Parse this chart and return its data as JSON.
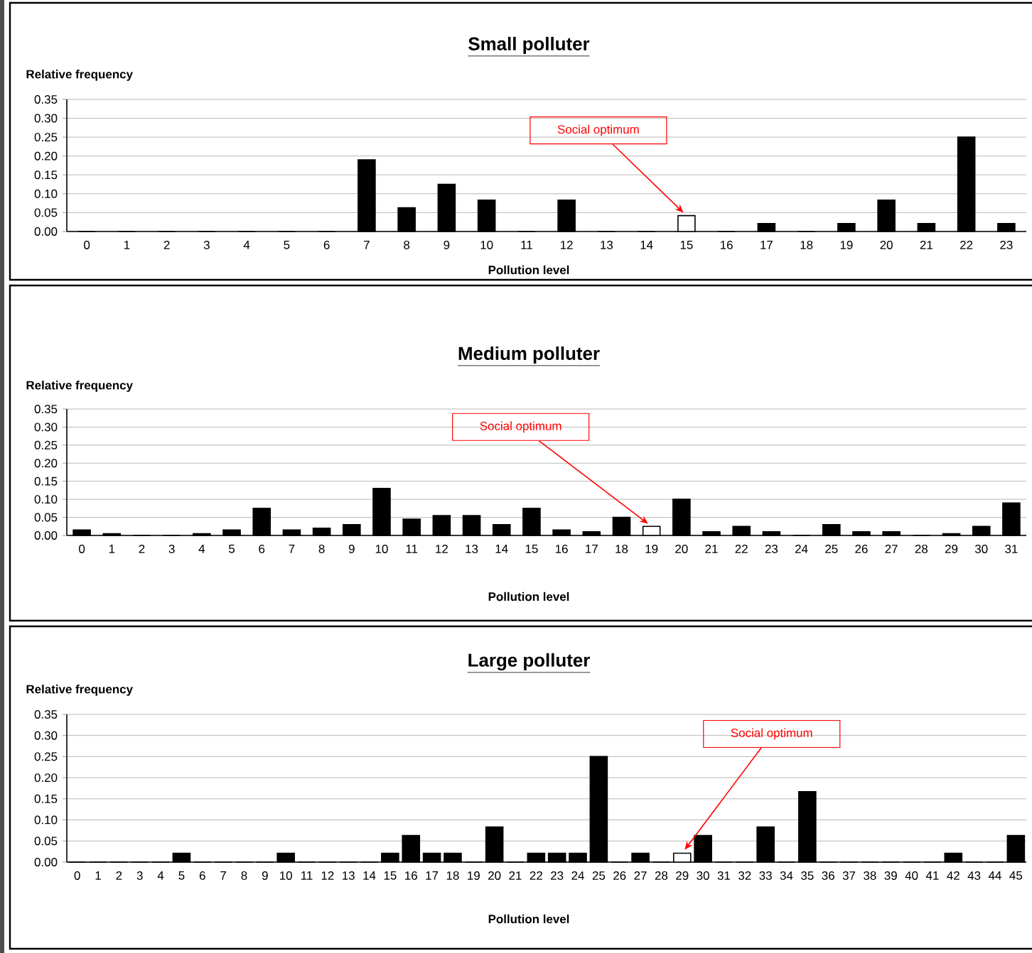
{
  "chart_data": [
    {
      "type": "bar",
      "title": "Small polluter",
      "xlabel": "Pollution level",
      "ylabel": "Relative frequency",
      "categories": [
        "0",
        "1",
        "2",
        "3",
        "4",
        "5",
        "6",
        "7",
        "8",
        "9",
        "10",
        "11",
        "12",
        "13",
        "14",
        "15",
        "16",
        "17",
        "18",
        "19",
        "20",
        "21",
        "22",
        "23"
      ],
      "values": [
        0,
        0,
        0,
        0,
        0,
        0,
        0,
        0.19,
        0.063,
        0.125,
        0.083,
        0,
        0.083,
        0,
        0,
        0.042,
        0,
        0.021,
        0,
        0.021,
        0.083,
        0.021,
        0.25,
        0.021
      ],
      "colors": [
        "#000000",
        "#000000",
        "#000000",
        "#000000",
        "#000000",
        "#000000",
        "#000000",
        "#000000",
        "#000000",
        "#000000",
        "#000000",
        "#000000",
        "#000000",
        "#000000",
        "#000000",
        "#ffffff",
        "#000000",
        "#000000",
        "#000000",
        "#000000",
        "#000000",
        "#000000",
        "#000000",
        "#000000"
      ],
      "ylim": [
        0,
        0.35
      ],
      "yticks": [
        {
          "value": 0,
          "label": "0.00"
        },
        {
          "value": 0.05,
          "label": "0.05"
        },
        {
          "value": 0.1,
          "label": "0.10"
        },
        {
          "value": 0.15,
          "label": "0.15"
        },
        {
          "value": 0.2,
          "label": "0.20"
        },
        {
          "value": 0.25,
          "label": "0.25"
        },
        {
          "value": 0.3,
          "label": "0.30"
        },
        {
          "value": 0.35,
          "label": "0.35"
        }
      ],
      "grid": "y",
      "annotations": [
        {
          "text": "Social optimum",
          "x": "15",
          "y": 0.042
        }
      ]
    },
    {
      "type": "bar",
      "title": "Medium polluter",
      "xlabel": "Pollution level",
      "ylabel": "Relative frequency",
      "categories": [
        "0",
        "1",
        "2",
        "3",
        "4",
        "5",
        "6",
        "7",
        "8",
        "9",
        "10",
        "11",
        "12",
        "13",
        "14",
        "15",
        "16",
        "17",
        "18",
        "19",
        "20",
        "21",
        "22",
        "23",
        "24",
        "25",
        "26",
        "27",
        "28",
        "29",
        "30",
        "31"
      ],
      "values": [
        0.015,
        0.005,
        0,
        0,
        0.005,
        0.015,
        0.075,
        0.015,
        0.02,
        0.03,
        0.13,
        0.045,
        0.055,
        0.055,
        0.03,
        0.075,
        0.015,
        0.01,
        0.05,
        0.025,
        0.1,
        0.01,
        0.025,
        0.01,
        0,
        0.03,
        0.01,
        0.01,
        0,
        0.005,
        0.025,
        0.09
      ],
      "colors": [
        "#000000",
        "#000000",
        "#000000",
        "#000000",
        "#000000",
        "#000000",
        "#000000",
        "#000000",
        "#000000",
        "#000000",
        "#000000",
        "#000000",
        "#000000",
        "#000000",
        "#000000",
        "#000000",
        "#000000",
        "#000000",
        "#000000",
        "#ffffff",
        "#000000",
        "#000000",
        "#000000",
        "#000000",
        "#000000",
        "#000000",
        "#000000",
        "#000000",
        "#000000",
        "#000000",
        "#000000",
        "#000000"
      ],
      "ylim": [
        0,
        0.35
      ],
      "yticks": [
        {
          "value": 0,
          "label": "0.00"
        },
        {
          "value": 0.05,
          "label": "0.05"
        },
        {
          "value": 0.1,
          "label": "0.10"
        },
        {
          "value": 0.15,
          "label": "0.15"
        },
        {
          "value": 0.2,
          "label": "0.20"
        },
        {
          "value": 0.25,
          "label": "0.25"
        },
        {
          "value": 0.3,
          "label": "0.30"
        },
        {
          "value": 0.35,
          "label": "0.35"
        }
      ],
      "grid": "y",
      "annotations": [
        {
          "text": "Social optimum",
          "x": "19",
          "y": 0.025
        }
      ]
    },
    {
      "type": "bar",
      "title": "Large polluter",
      "xlabel": "Pollution level",
      "ylabel": "Relative frequency",
      "categories": [
        "0",
        "1",
        "2",
        "3",
        "4",
        "5",
        "6",
        "7",
        "8",
        "9",
        "10",
        "11",
        "12",
        "13",
        "14",
        "15",
        "16",
        "17",
        "18",
        "19",
        "20",
        "21",
        "22",
        "23",
        "24",
        "25",
        "26",
        "27",
        "28",
        "29",
        "30",
        "31",
        "32",
        "33",
        "34",
        "35",
        "36",
        "37",
        "38",
        "39",
        "40",
        "41",
        "42",
        "43",
        "44",
        "45"
      ],
      "values": [
        0,
        0,
        0,
        0,
        0,
        0.021,
        0,
        0,
        0,
        0,
        0.021,
        0,
        0,
        0,
        0,
        0.021,
        0.063,
        0.021,
        0.021,
        0,
        0.083,
        0,
        0.021,
        0.021,
        0.021,
        0.25,
        0,
        0.021,
        0,
        0.021,
        0.063,
        0,
        0,
        0.083,
        0,
        0.167,
        0,
        0,
        0,
        0,
        0,
        0,
        0.021,
        0,
        0,
        0.063
      ],
      "colors": [
        "#000000",
        "#000000",
        "#000000",
        "#000000",
        "#000000",
        "#000000",
        "#000000",
        "#000000",
        "#000000",
        "#000000",
        "#000000",
        "#000000",
        "#000000",
        "#000000",
        "#000000",
        "#000000",
        "#000000",
        "#000000",
        "#000000",
        "#000000",
        "#000000",
        "#000000",
        "#000000",
        "#000000",
        "#000000",
        "#000000",
        "#000000",
        "#000000",
        "#000000",
        "#ffffff",
        "#000000",
        "#000000",
        "#000000",
        "#000000",
        "#000000",
        "#000000",
        "#000000",
        "#000000",
        "#000000",
        "#000000",
        "#000000",
        "#000000",
        "#000000",
        "#000000",
        "#000000",
        "#000000"
      ],
      "ylim": [
        0,
        0.35
      ],
      "yticks": [
        {
          "value": 0,
          "label": "0.00"
        },
        {
          "value": 0.05,
          "label": "0.05"
        },
        {
          "value": 0.1,
          "label": "0.10"
        },
        {
          "value": 0.15,
          "label": "0.15"
        },
        {
          "value": 0.2,
          "label": "0.20"
        },
        {
          "value": 0.25,
          "label": "0.25"
        },
        {
          "value": 0.3,
          "label": "0.30"
        },
        {
          "value": 0.35,
          "label": "0.35"
        }
      ],
      "grid": "y",
      "annotations": [
        {
          "text": "Social optimum",
          "x": "29",
          "y": 0.021
        }
      ]
    }
  ]
}
